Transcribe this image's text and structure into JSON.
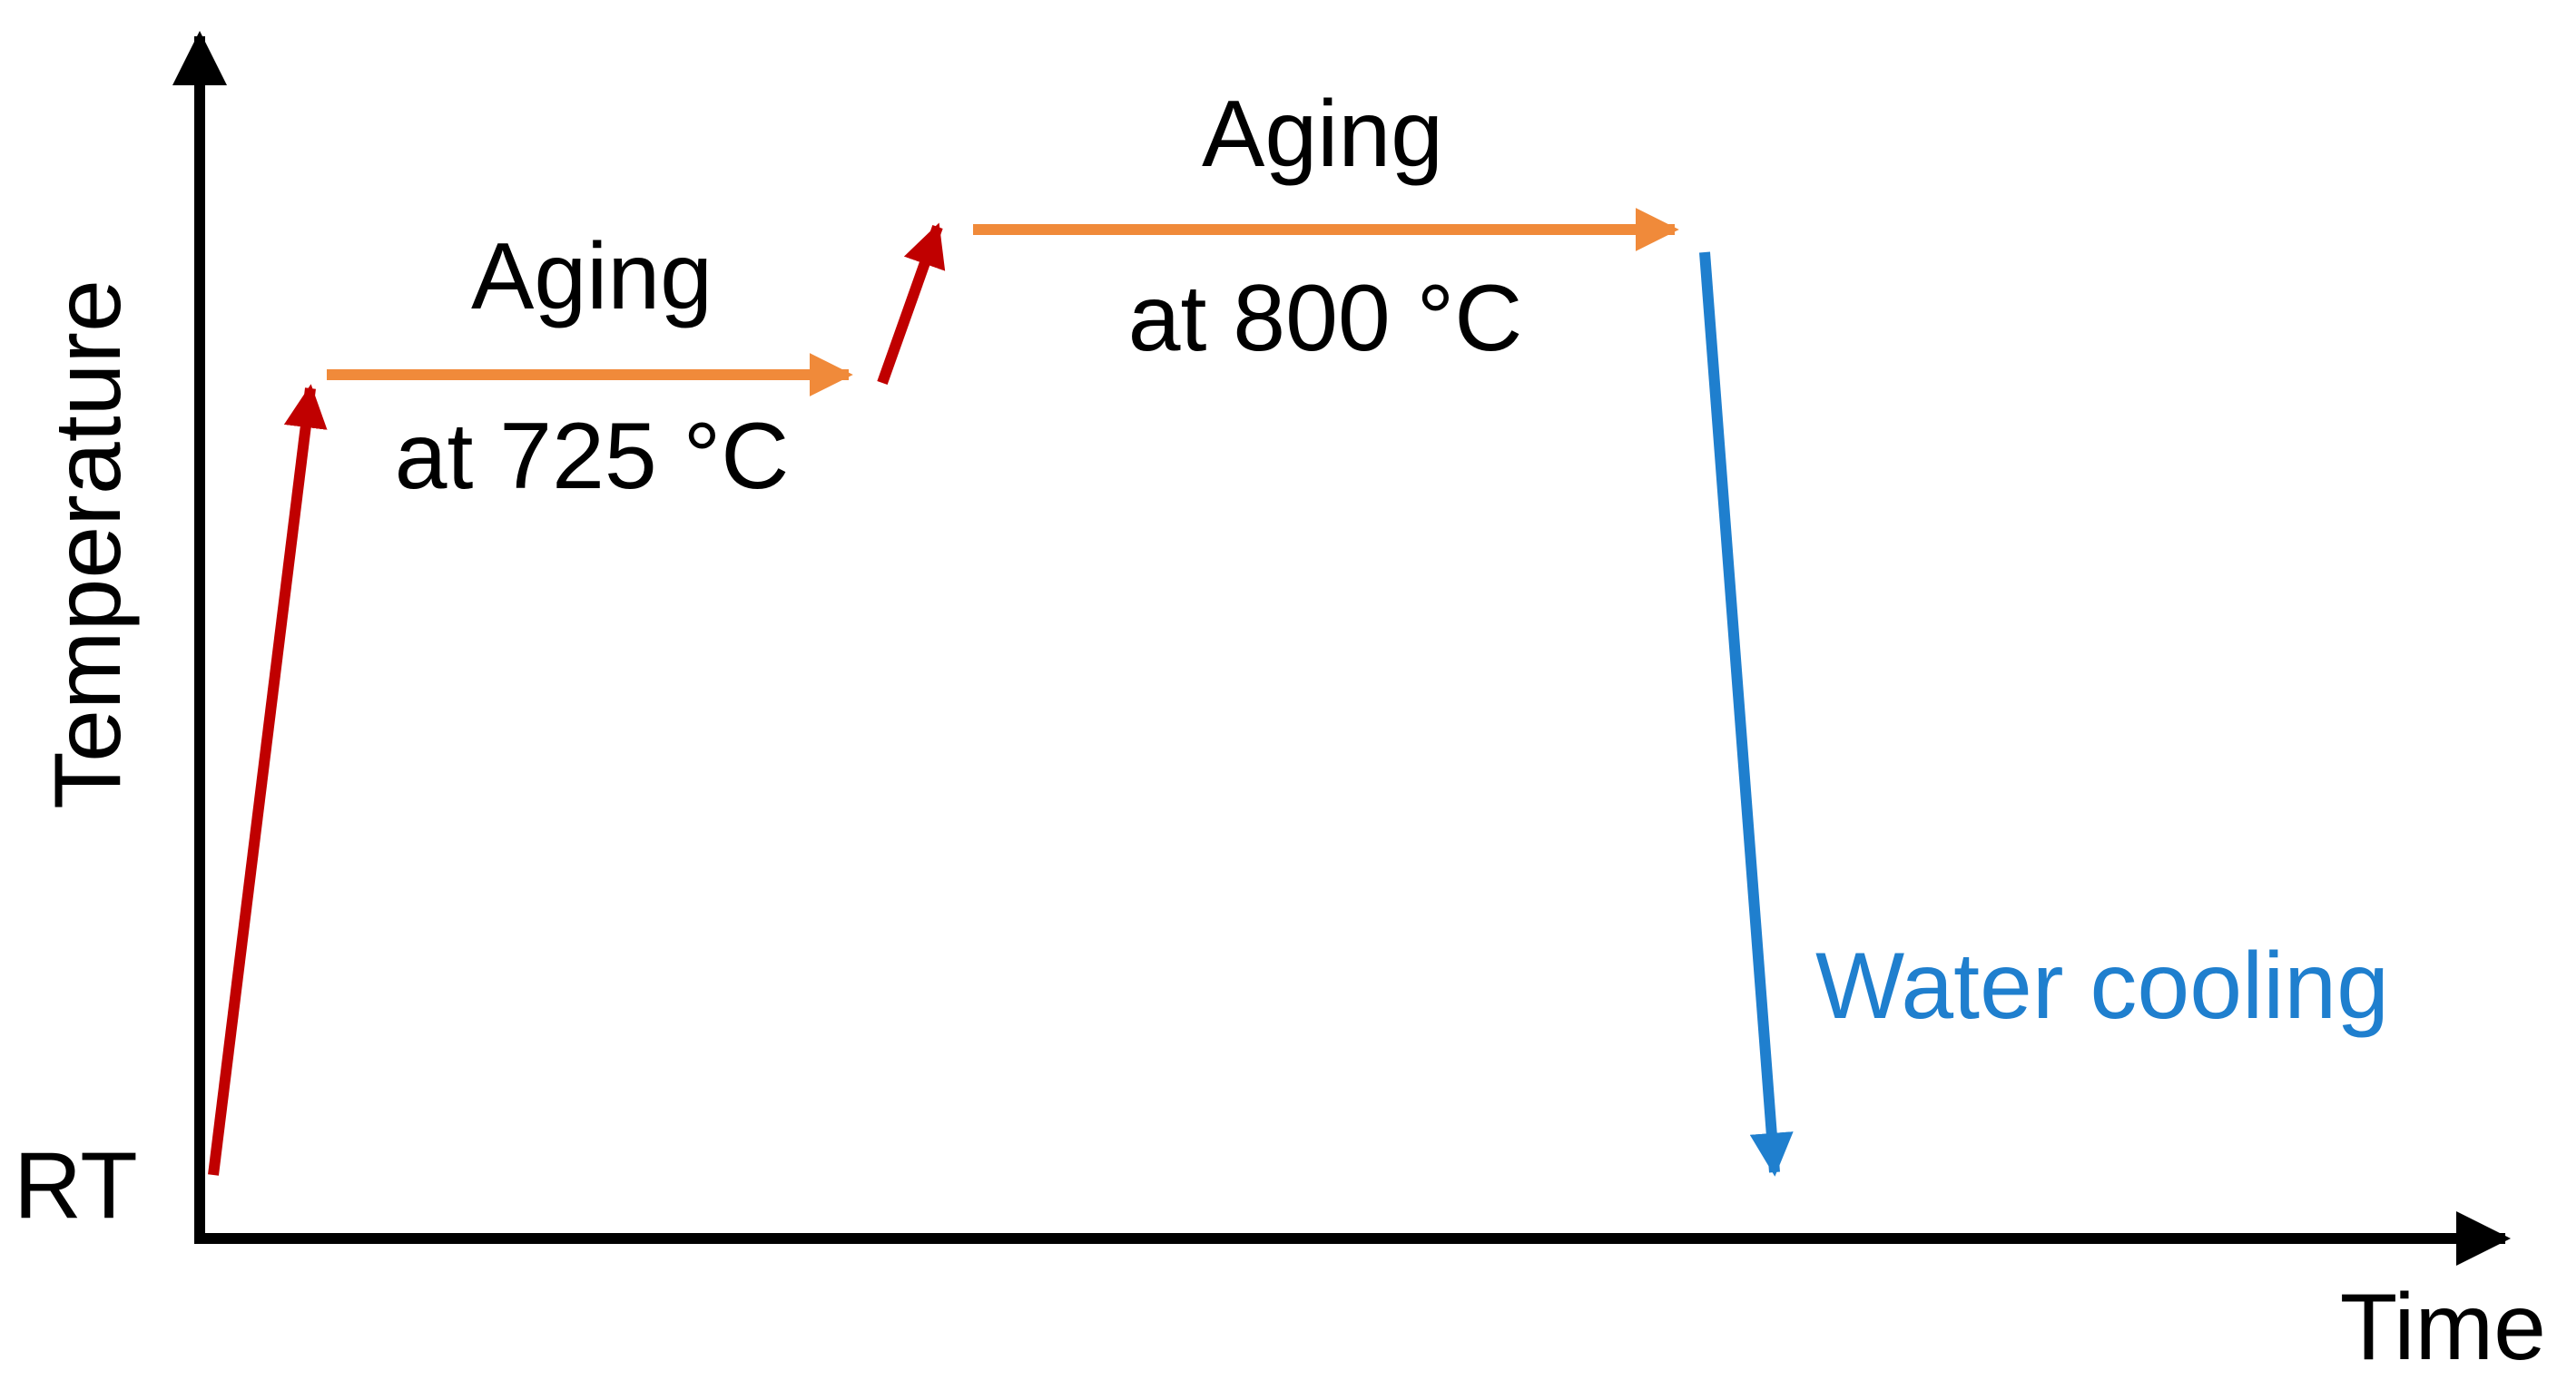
{
  "diagram": {
    "y_axis_label": "Temperature",
    "x_axis_label": "Time",
    "y_start_label": "RT",
    "stage1": {
      "title": "Aging",
      "subtitle": "at 725 °C"
    },
    "stage2": {
      "title": "Aging",
      "subtitle": "at 800 °C"
    },
    "cooling_label": "Water cooling"
  },
  "colors": {
    "heating": "#c00000",
    "aging": "#f08a3a",
    "cooling": "#1f7fce",
    "axis": "#000000"
  }
}
